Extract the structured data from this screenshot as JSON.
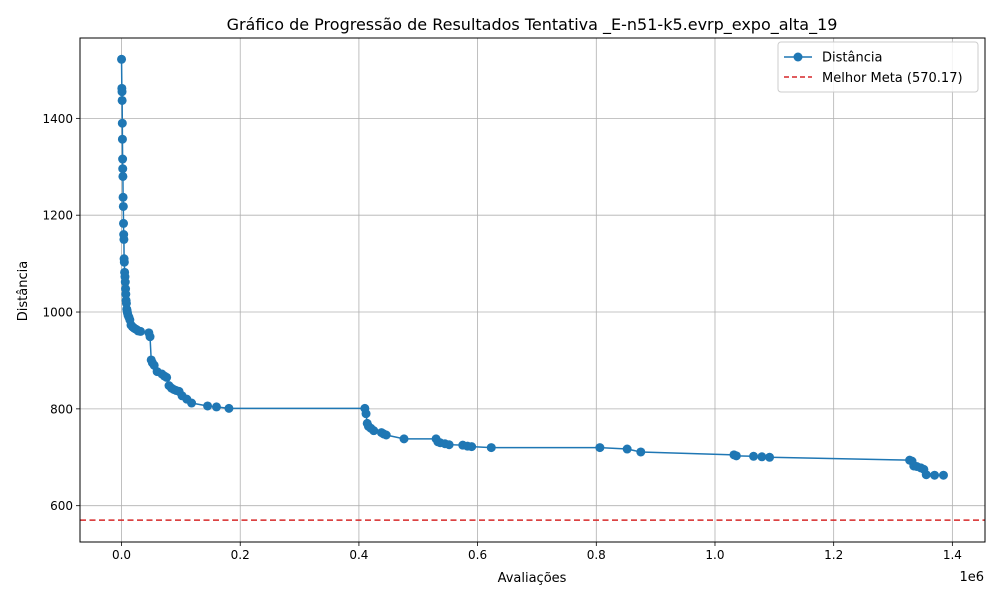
{
  "chart_data": {
    "type": "line",
    "title": "Gráfico de Progressão de Resultados Tentativa _E-n51-k5.evrp_expo_alta_19",
    "xlabel": "Avaliações",
    "ylabel": "Distância",
    "x_offset_label": "1e6",
    "xlim": [
      -70000,
      1455000
    ],
    "ylim": [
      525,
      1566
    ],
    "x_ticks": [
      0.0,
      0.2,
      0.4,
      0.6,
      0.8,
      1.0,
      1.2,
      1.4
    ],
    "x_tick_labels": [
      "0.0",
      "0.2",
      "0.4",
      "0.6",
      "0.8",
      "1.0",
      "1.2",
      "1.4"
    ],
    "x_tick_scale": 1000000,
    "y_ticks": [
      600,
      800,
      1000,
      1200,
      1400
    ],
    "y_tick_labels": [
      "600",
      "800",
      "1000",
      "1200",
      "1400"
    ],
    "grid": true,
    "legend_position": "top-right",
    "series": [
      {
        "name": "Distância",
        "color": "#1f77b4",
        "marker": "circle",
        "x": [
          0,
          500,
          800,
          1000,
          1300,
          1500,
          1800,
          2000,
          2300,
          2600,
          3000,
          3300,
          3600,
          4000,
          4300,
          4700,
          5200,
          5800,
          6300,
          6800,
          7200,
          7700,
          8200,
          8800,
          9400,
          10000,
          11000,
          12500,
          14000,
          16000,
          18000,
          20000,
          22000,
          25000,
          28000,
          32000,
          46000,
          48000,
          50000,
          52000,
          55000,
          60000,
          68000,
          72000,
          76000,
          80000,
          84000,
          88000,
          92000,
          97000,
          102000,
          110000,
          118000,
          145000,
          160000,
          181000,
          410000,
          412000,
          414000,
          416000,
          420000,
          425000,
          438000,
          442000,
          446000,
          476000,
          530000,
          533000,
          537000,
          545000,
          552000,
          575000,
          583000,
          590000,
          623000,
          806000,
          852000,
          875000,
          1032000,
          1036000,
          1065000,
          1079000,
          1092000,
          1328000,
          1332000,
          1335000,
          1340000,
          1347000,
          1352000,
          1356000,
          1370000,
          1385000
        ],
        "y": [
          1522,
          1462,
          1455,
          1437,
          1390,
          1357,
          1316,
          1296,
          1280,
          1237,
          1218,
          1183,
          1160,
          1150,
          1110,
          1103,
          1082,
          1073,
          1062,
          1048,
          1037,
          1024,
          1018,
          1006,
          1002,
          998,
          993,
          989,
          984,
          973,
          970,
          968,
          966,
          964,
          961,
          960,
          957,
          949,
          901,
          895,
          890,
          877,
          872,
          868,
          865,
          848,
          843,
          840,
          838,
          836,
          827,
          820,
          812,
          806,
          804,
          801,
          801,
          790,
          770,
          764,
          760,
          755,
          751,
          748,
          746,
          738,
          738,
          732,
          730,
          728,
          726,
          725,
          723,
          722,
          720,
          720,
          717,
          711,
          705,
          703,
          702,
          701,
          700,
          694,
          692,
          682,
          681,
          678,
          675,
          664,
          663,
          663
        ]
      },
      {
        "name": "Melhor Meta (570.17)",
        "color": "#d62728",
        "style": "dashed",
        "y_constant": 570.17
      }
    ]
  }
}
